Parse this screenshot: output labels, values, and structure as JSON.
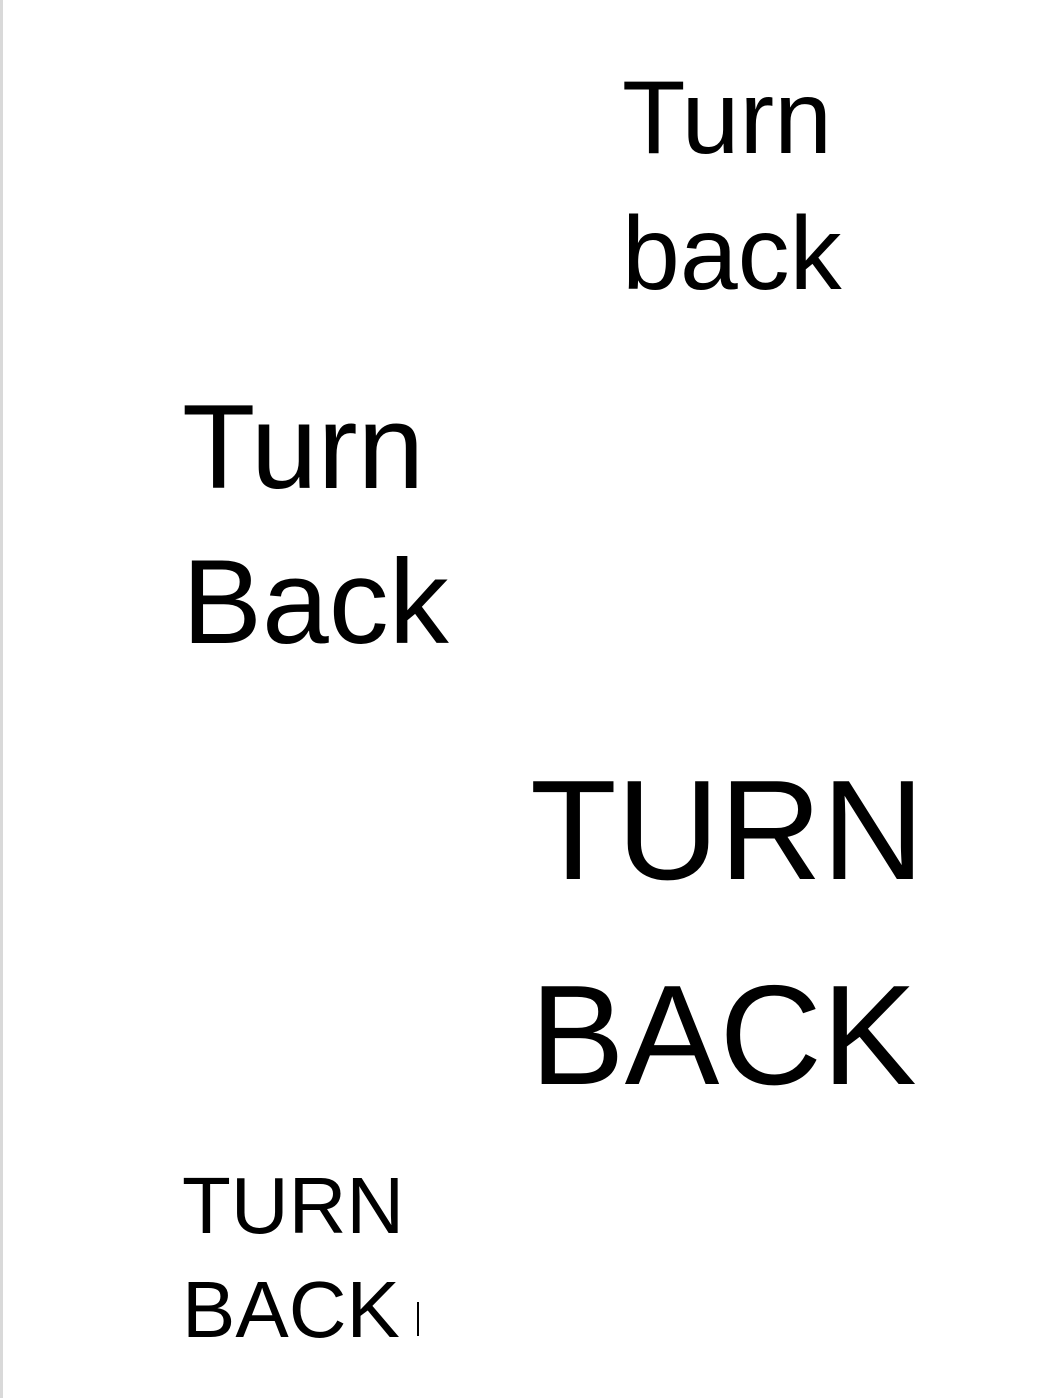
{
  "document": {
    "blocks": [
      {
        "lines": [
          "Turn",
          "back"
        ]
      },
      {
        "lines": [
          "Turn",
          "Back"
        ]
      },
      {
        "lines": [
          "TURN",
          "BACK"
        ]
      },
      {
        "lines": [
          "TURN",
          "BACK"
        ]
      }
    ]
  }
}
